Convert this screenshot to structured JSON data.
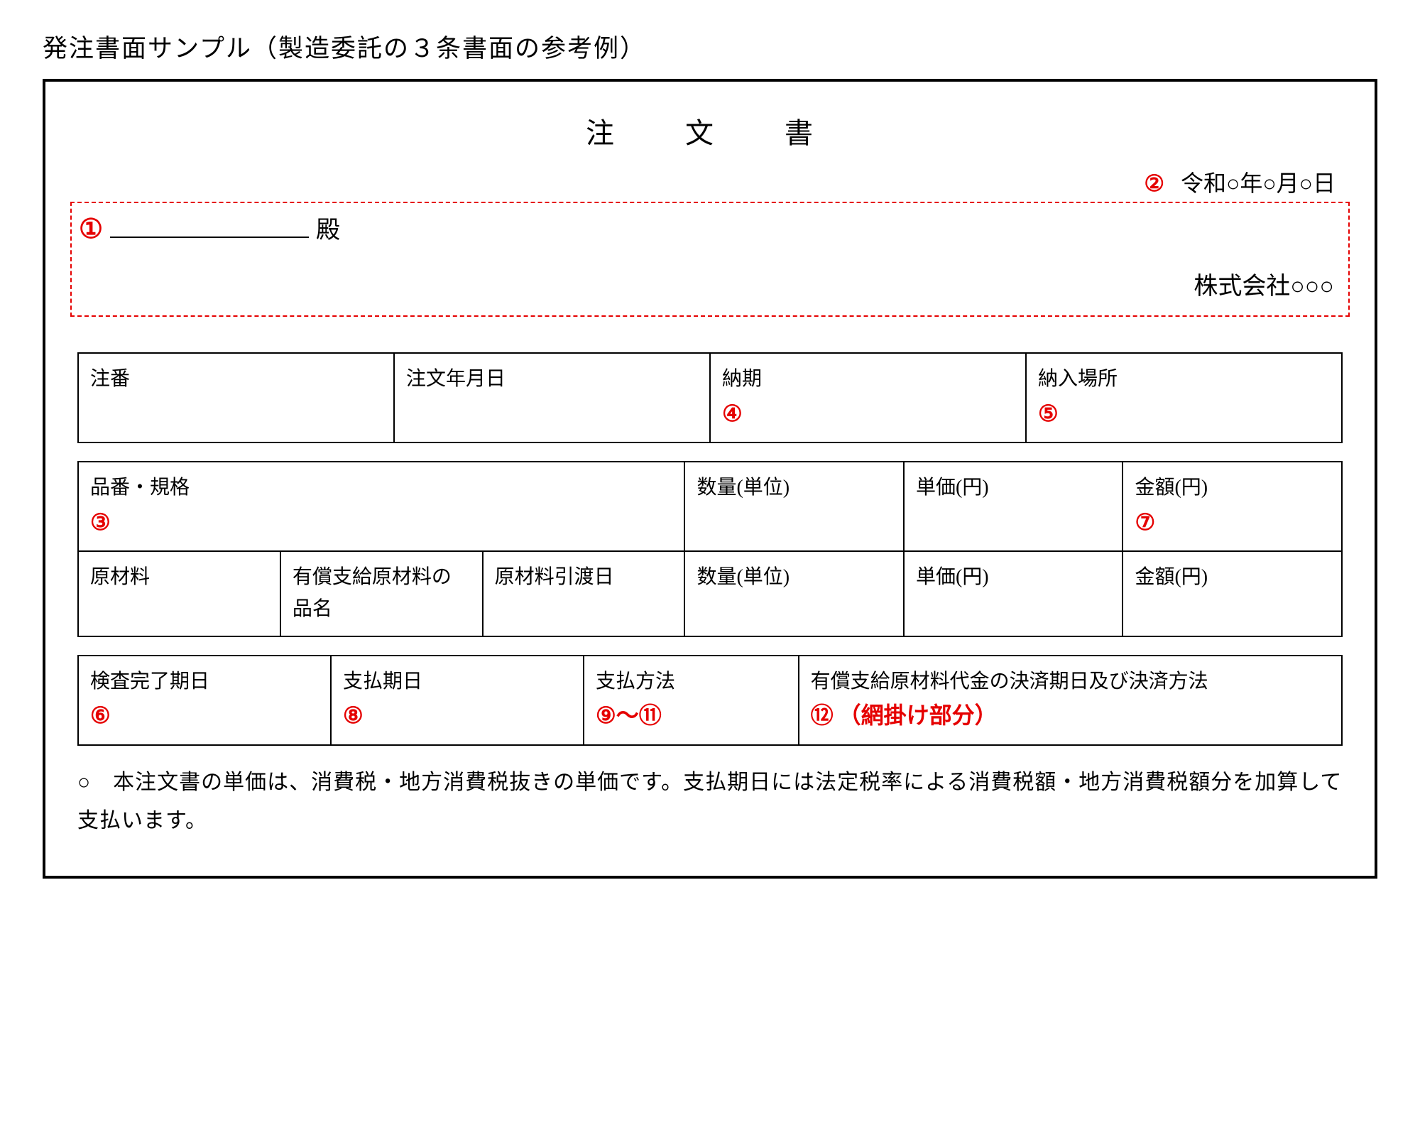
{
  "colors": {
    "annotation": "#e50000",
    "dashed_border": "#e50000",
    "border": "#000000",
    "text": "#000000",
    "background": "#ffffff"
  },
  "page_heading": "発注書面サンプル（製造委託の３条書面の参考例）",
  "doc_title": "注　文　書",
  "date": {
    "mark": "②",
    "text": "令和○年○月○日"
  },
  "dashed": {
    "mark1": "①",
    "recipient_suffix": "殿",
    "company": "株式会社○○○"
  },
  "table1": {
    "cells": {
      "order_no": {
        "label": "注番",
        "mark": ""
      },
      "order_date": {
        "label": "注文年月日",
        "mark": ""
      },
      "due_date": {
        "label": "納期",
        "mark": "④"
      },
      "delivery_place": {
        "label": "納入場所",
        "mark": "⑤"
      }
    }
  },
  "table2": {
    "row1": {
      "item_spec": {
        "label": "品番・規格",
        "mark": "③"
      },
      "qty_unit": {
        "label": "数量(単位)",
        "mark": ""
      },
      "unit_price": {
        "label": "単価(円)",
        "mark": ""
      },
      "amount": {
        "label": "金額(円)",
        "mark": "⑦"
      }
    },
    "row2": {
      "raw_material": {
        "label": "原材料",
        "mark": ""
      },
      "paid_material_name": {
        "label": "有償支給原材料の品名",
        "mark": ""
      },
      "material_delivery_date": {
        "label": "原材料引渡日",
        "mark": ""
      },
      "qty_unit": {
        "label": "数量(単位)",
        "mark": ""
      },
      "unit_price": {
        "label": "単価(円)",
        "mark": ""
      },
      "amount": {
        "label": "金額(円)",
        "mark": ""
      }
    }
  },
  "table3": {
    "inspection_date": {
      "label": "検査完了期日",
      "mark": "⑥",
      "extra": ""
    },
    "payment_date": {
      "label": "支払期日",
      "mark": "⑧",
      "extra": ""
    },
    "payment_method": {
      "label": "支払方法",
      "mark": "⑨～⑪",
      "extra": ""
    },
    "settlement": {
      "label": "有償支給原材料代金の決済期日及び決済方法",
      "mark": "⑫",
      "extra": "（網掛け部分）"
    }
  },
  "footnote": "○　本注文書の単価は、消費税・地方消費税抜きの単価です。支払期日には法定税率による消費税額・地方消費税額分を加算して支払います。"
}
